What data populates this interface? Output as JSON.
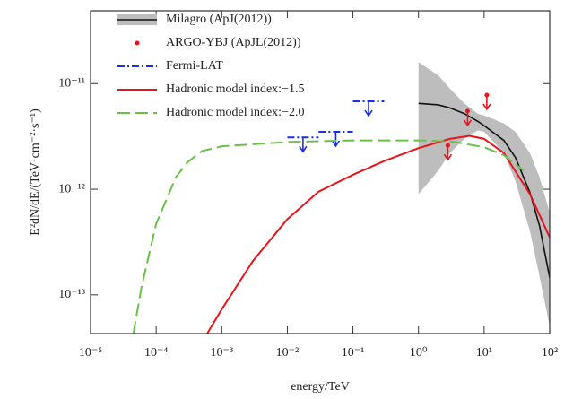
{
  "chart_data": {
    "type": "line",
    "xlabel": "energy/TeV",
    "ylabel": "E²dN/dE/(TeV·cm⁻²·s⁻¹)",
    "log_x": true,
    "log_y": true,
    "xlim": [
      1e-05,
      100
    ],
    "ylim": [
      4.3e-14,
      4.9e-11
    ],
    "xticks": [
      {
        "value": 1e-05,
        "label": "10⁻⁵"
      },
      {
        "value": 0.0001,
        "label": "10⁻⁴"
      },
      {
        "value": 0.001,
        "label": "10⁻³"
      },
      {
        "value": 0.01,
        "label": "10⁻²"
      },
      {
        "value": 0.1,
        "label": "10⁻¹"
      },
      {
        "value": 1,
        "label": "10⁰"
      },
      {
        "value": 10,
        "label": "10¹"
      },
      {
        "value": 100,
        "label": "10²"
      }
    ],
    "yticks": [
      {
        "value": 1e-13,
        "label": "10⁻¹³"
      },
      {
        "value": 1e-12,
        "label": "10⁻¹²"
      },
      {
        "value": 1e-11,
        "label": "10⁻¹¹"
      }
    ],
    "legend": "upper left",
    "series": [
      {
        "name": "Milagro (ApJ(2012))",
        "style": "band",
        "color": "#111111",
        "band_color": "#bdbdbd",
        "x": [
          1,
          2,
          3,
          5,
          8,
          10,
          20,
          30,
          50,
          70,
          100
        ],
        "values": [
          6.5e-12,
          6.3e-12,
          5.9e-12,
          5.2e-12,
          4.4e-12,
          4e-12,
          2.9e-12,
          2e-12,
          9.3e-13,
          4.5e-13,
          1.45e-13
        ],
        "upper": [
          1.6e-11,
          1.2e-11,
          9e-12,
          6.5e-12,
          5.2e-12,
          5e-12,
          4.2e-12,
          3.5e-12,
          2.2e-12,
          1.3e-12,
          6e-13
        ],
        "lower": [
          9e-13,
          1.5e-12,
          2.2e-12,
          3e-12,
          3.6e-12,
          3.5e-12,
          2.2e-12,
          1.2e-12,
          4e-13,
          1.5e-13,
          5e-14
        ]
      },
      {
        "name": "ARGO-YBJ (ApJL(2012))",
        "style": "upper_limit",
        "color": "#e8141b",
        "x": [
          2.8,
          5.6,
          11
        ],
        "values": [
          2.6e-12,
          5.5e-12,
          7.8e-12
        ]
      },
      {
        "name": "Fermi-LAT",
        "style": "flux_limit",
        "color": "#1a2fe0",
        "x_low": [
          0.01,
          0.03,
          0.1
        ],
        "x_high": [
          0.03,
          0.1,
          0.3
        ],
        "values": [
          3.1e-12,
          3.5e-12,
          6.8e-12
        ]
      },
      {
        "name": "Hadronic model index:−1.5",
        "style": "solid",
        "color": "#e8141b",
        "x": [
          0.0006,
          0.001,
          0.003,
          0.01,
          0.03,
          0.1,
          0.3,
          1,
          3,
          6,
          10,
          20,
          50,
          100
        ],
        "values": [
          4.3e-14,
          7.3e-14,
          2.1e-13,
          5.2e-13,
          9.5e-13,
          1.37e-12,
          1.85e-12,
          2.45e-12,
          3e-12,
          3.2e-12,
          3e-12,
          2.2e-12,
          9e-13,
          3.5e-13
        ]
      },
      {
        "name": "Hadronic model index:−2.0",
        "style": "dashed",
        "color": "#6cc04a",
        "x": [
          4.5e-05,
          6e-05,
          0.0001,
          0.0002,
          0.0003,
          0.0005,
          0.001,
          0.01,
          0.1,
          1,
          3,
          10,
          20,
          40
        ],
        "values": [
          4.3e-14,
          1.2e-13,
          4.7e-13,
          1.3e-12,
          1.8e-12,
          2.3e-12,
          2.55e-12,
          2.8e-12,
          2.9e-12,
          2.9e-12,
          2.85e-12,
          2.5e-12,
          2.1e-12,
          1.5e-12
        ]
      }
    ]
  }
}
